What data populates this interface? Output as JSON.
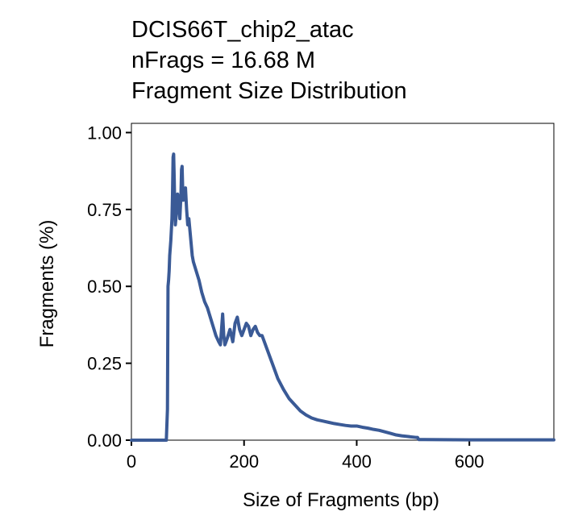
{
  "chart_data": {
    "type": "line",
    "title_lines": [
      "DCIS66T_chip2_atac",
      "nFrags = 16.68 M",
      "Fragment Size Distribution"
    ],
    "xlabel": "Size of Fragments (bp)",
    "ylabel": "Fragments (%)",
    "xlim": [
      0,
      750
    ],
    "ylim": [
      0,
      1.03
    ],
    "x_ticks": [
      0,
      200,
      400,
      600
    ],
    "x_tick_labels": [
      "0",
      "200",
      "400",
      "600"
    ],
    "y_ticks": [
      0,
      0.25,
      0.5,
      0.75,
      1.0
    ],
    "y_tick_labels": [
      "0.00",
      "0.25",
      "0.50",
      "0.75",
      "1.00"
    ],
    "grid": false,
    "legend": "none",
    "series": [
      {
        "color": "#3a5a96",
        "x": [
          0,
          50,
          62,
          64,
          65,
          66,
          67,
          68,
          70,
          72,
          73,
          74,
          75,
          76,
          77,
          78,
          80,
          82,
          84,
          86,
          88,
          89,
          90,
          91,
          92,
          94,
          96,
          98,
          100,
          102,
          104,
          106,
          108,
          110,
          115,
          120,
          125,
          130,
          135,
          140,
          145,
          150,
          155,
          158,
          160,
          162,
          164,
          166,
          170,
          175,
          180,
          184,
          188,
          192,
          196,
          200,
          204,
          208,
          212,
          216,
          220,
          224,
          228,
          232,
          240,
          250,
          260,
          270,
          280,
          290,
          300,
          310,
          320,
          330,
          340,
          350,
          360,
          370,
          380,
          390,
          400,
          410,
          420,
          430,
          440,
          450,
          460,
          470,
          480,
          490,
          500,
          505,
          508,
          510,
          520,
          600,
          750
        ],
        "y": [
          0,
          0,
          0,
          0.1,
          0.5,
          0.52,
          0.55,
          0.6,
          0.65,
          0.72,
          0.8,
          0.92,
          0.93,
          0.85,
          0.75,
          0.7,
          0.74,
          0.8,
          0.78,
          0.72,
          0.8,
          0.88,
          0.89,
          0.82,
          0.78,
          0.8,
          0.82,
          0.75,
          0.7,
          0.72,
          0.68,
          0.64,
          0.6,
          0.58,
          0.55,
          0.52,
          0.48,
          0.45,
          0.43,
          0.4,
          0.37,
          0.34,
          0.32,
          0.31,
          0.36,
          0.41,
          0.34,
          0.31,
          0.33,
          0.36,
          0.32,
          0.38,
          0.4,
          0.36,
          0.34,
          0.36,
          0.38,
          0.37,
          0.34,
          0.36,
          0.37,
          0.35,
          0.34,
          0.34,
          0.3,
          0.25,
          0.2,
          0.165,
          0.135,
          0.115,
          0.095,
          0.082,
          0.072,
          0.066,
          0.062,
          0.058,
          0.054,
          0.051,
          0.048,
          0.046,
          0.046,
          0.042,
          0.039,
          0.035,
          0.032,
          0.027,
          0.022,
          0.017,
          0.014,
          0.012,
          0.01,
          0.009,
          0.009,
          0.002,
          0.002,
          0.001,
          0.001
        ]
      }
    ]
  }
}
